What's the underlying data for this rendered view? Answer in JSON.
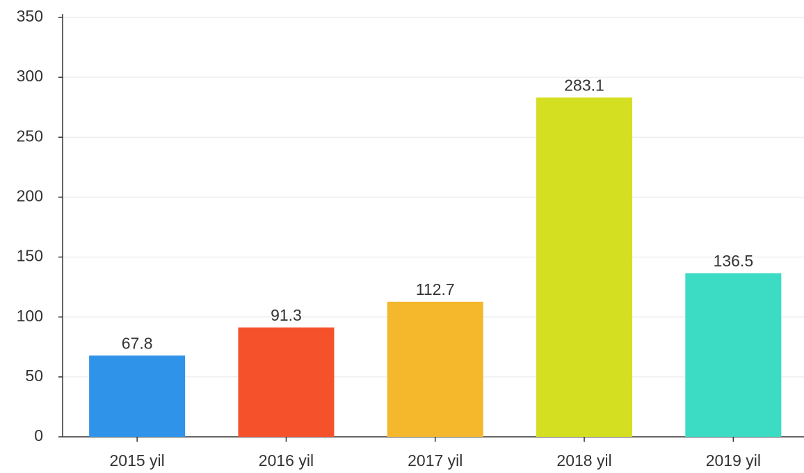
{
  "chart_data": {
    "type": "bar",
    "categories": [
      "2015 yil",
      "2016 yil",
      "2017 yil",
      "2018 yil",
      "2019 yil"
    ],
    "values": [
      67.8,
      91.3,
      112.7,
      283.1,
      136.5
    ],
    "colors": [
      "#2f93ea",
      "#f5512b",
      "#f5b82c",
      "#d5df22",
      "#3cdcc4"
    ],
    "ylim": [
      0,
      350
    ],
    "yticks": [
      0,
      50,
      100,
      150,
      200,
      250,
      300,
      350
    ],
    "grid": true
  }
}
